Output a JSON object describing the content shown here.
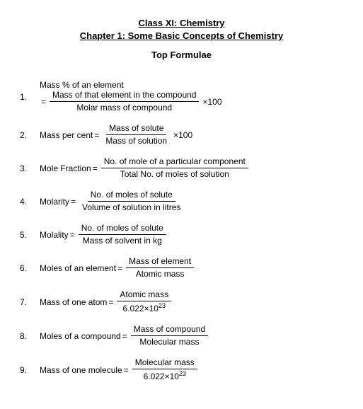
{
  "header": {
    "line1": "Class XI: Chemistry",
    "line2": "Chapter 1: Some Basic Concepts of Chemistry",
    "subtitle": "Top Formulae"
  },
  "formulae": {
    "f1": {
      "num": "1.",
      "lhs": "Mass % of an element",
      "eq": "=",
      "top": "Mass of that element in the compound",
      "bot": "Molar mass of compound",
      "tail": "×100"
    },
    "f2": {
      "num": "2.",
      "lhs": "Mass per cent",
      "eq": "=",
      "top": "Mass of solute",
      "bot": "Mass of solution",
      "tail": "×100"
    },
    "f3": {
      "num": "3.",
      "lhs": "Mole Fraction",
      "eq": "=",
      "top": "No. of mole of a particular component",
      "bot": "Total No. of moles of solution"
    },
    "f4": {
      "num": "4.",
      "lhs": "Molarity",
      "eq": "=",
      "top": "No. of moles of solute",
      "bot": "Volume of solution in litres"
    },
    "f5": {
      "num": "5.",
      "lhs": "Molality",
      "eq": "=",
      "top": "No. of moles of solute",
      "bot": "Mass of solvent in kg"
    },
    "f6": {
      "num": "6.",
      "lhs": "Moles of an element",
      "eq": "=",
      "top": "Mass of element",
      "bot": "Atomic mass"
    },
    "f7": {
      "num": "7.",
      "lhs": "Mass of one atom",
      "eq": "=",
      "top": "Atomic mass",
      "bot_a": "6.022×10",
      "bot_b": "23"
    },
    "f8": {
      "num": "8.",
      "lhs": "Moles of a compound",
      "eq": "=",
      "top": "Mass of compound",
      "bot": "Molecular mass"
    },
    "f9": {
      "num": "9.",
      "lhs": "Mass of one molecule",
      "eq": "=",
      "top": "Molecular mass",
      "bot_a": "6.022×10",
      "bot_b": "23"
    }
  }
}
